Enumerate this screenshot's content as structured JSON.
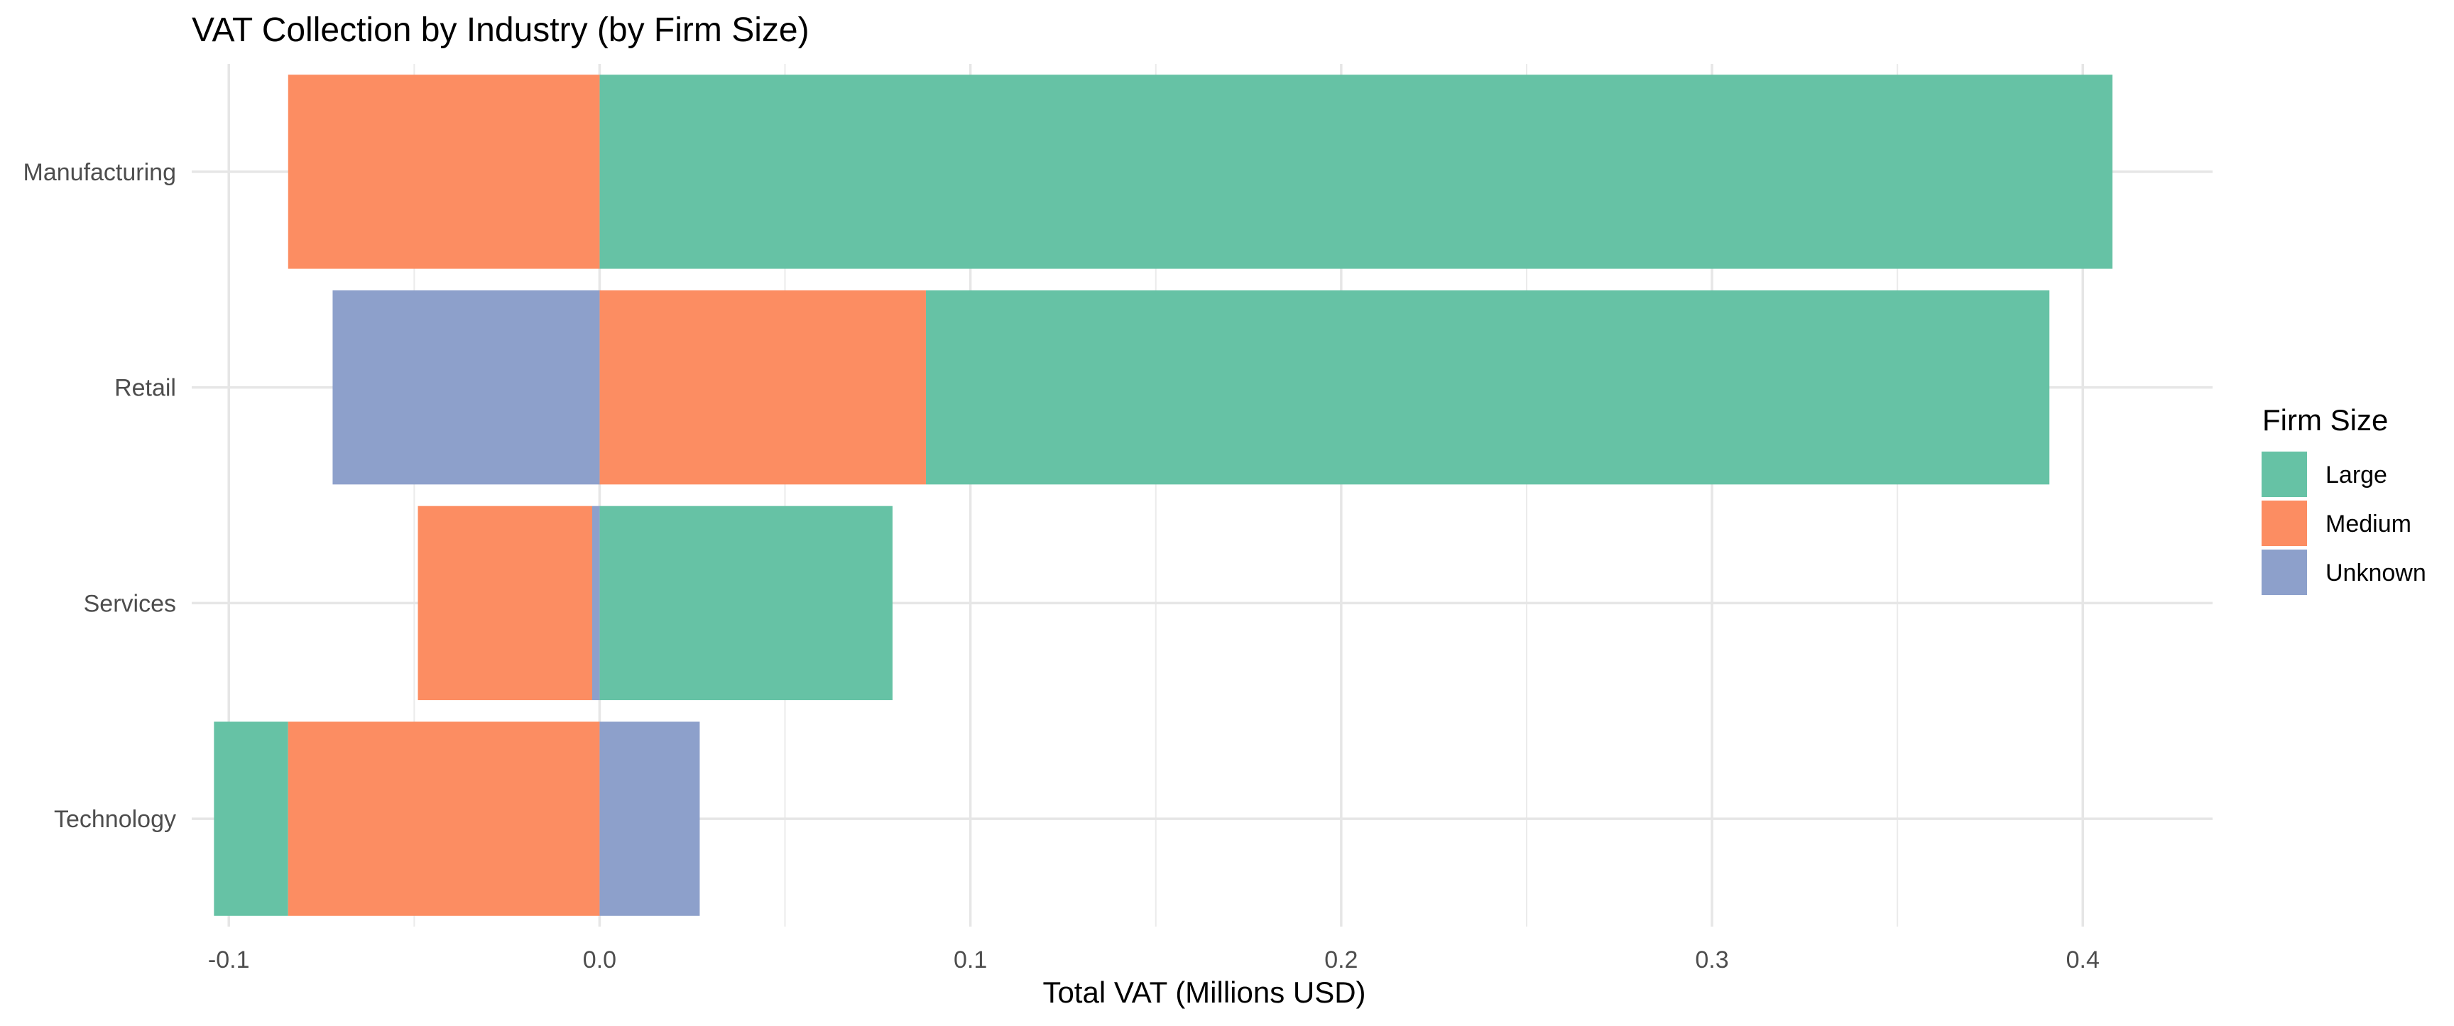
{
  "chart_data": {
    "type": "bar",
    "orientation": "horizontal",
    "stacked": "diverging",
    "title": "VAT Collection by Industry (by Firm Size)",
    "xlabel": "Total VAT (Millions USD)",
    "ylabel": "",
    "xlim": [
      -0.11,
      0.435
    ],
    "x_ticks": [
      -0.1,
      0.0,
      0.1,
      0.2,
      0.3,
      0.4
    ],
    "x_tick_labels": [
      "-0.1",
      "0.0",
      "0.1",
      "0.2",
      "0.3",
      "0.4"
    ],
    "categories": [
      "Manufacturing",
      "Retail",
      "Services",
      "Technology"
    ],
    "grid": true,
    "legend": {
      "title": "Firm Size",
      "position": "right",
      "entries": [
        "Large",
        "Medium",
        "Unknown"
      ]
    },
    "series": [
      {
        "name": "Large",
        "color": "#66c2a5",
        "segments": [
          [
            0.0,
            0.408
          ],
          [
            0.088,
            0.391
          ],
          [
            0.0,
            0.079
          ],
          [
            -0.104,
            -0.084
          ]
        ]
      },
      {
        "name": "Medium",
        "color": "#fc8d62",
        "segments": [
          [
            -0.084,
            0.0
          ],
          [
            0.0,
            0.088
          ],
          [
            -0.049,
            -0.002
          ],
          [
            -0.084,
            0.0
          ]
        ]
      },
      {
        "name": "Unknown",
        "color": "#8da0cb",
        "segments": [
          null,
          [
            -0.072,
            0.0
          ],
          [
            -0.002,
            0.0
          ],
          [
            0.0,
            0.027
          ]
        ]
      }
    ]
  }
}
